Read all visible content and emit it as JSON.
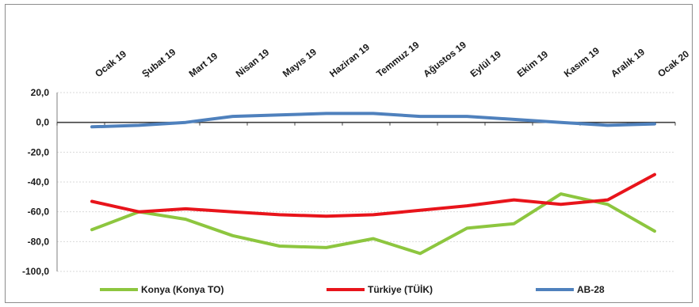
{
  "chart_data": {
    "type": "line",
    "categories": [
      "Ocak 19",
      "Şubat 19",
      "Mart 19",
      "Nisan 19",
      "Mayıs 19",
      "Haziran 19",
      "Temmuz 19",
      "Ağustos 19",
      "Eylül 19",
      "Ekim 19",
      "Kasım 19",
      "Aralık 19",
      "Ocak 20"
    ],
    "yticks": [
      "20,0",
      "0,0",
      "-20,0",
      "-40,0",
      "-60,0",
      "-80,0",
      "-100,0"
    ],
    "ylim": [
      -100,
      20
    ],
    "grid": true,
    "legend_position": "bottom",
    "series": [
      {
        "name": "Konya (Konya TO)",
        "color": "#8dc63f",
        "values": [
          -72,
          -60,
          -65,
          -76,
          -83,
          -84,
          -78,
          -88,
          -71,
          -68,
          -48,
          -55,
          -73
        ]
      },
      {
        "name": "Türkiye (TÜİK)",
        "color": "#e8141b",
        "values": [
          -53,
          -60,
          -58,
          -60,
          -62,
          -63,
          -62,
          -59,
          -56,
          -52,
          -55,
          -52,
          -35
        ]
      },
      {
        "name": "AB-28",
        "color": "#4f81bd",
        "values": [
          -3,
          -2,
          0,
          4,
          5,
          6,
          6,
          4,
          4,
          2,
          0,
          -2,
          -1
        ]
      }
    ]
  }
}
